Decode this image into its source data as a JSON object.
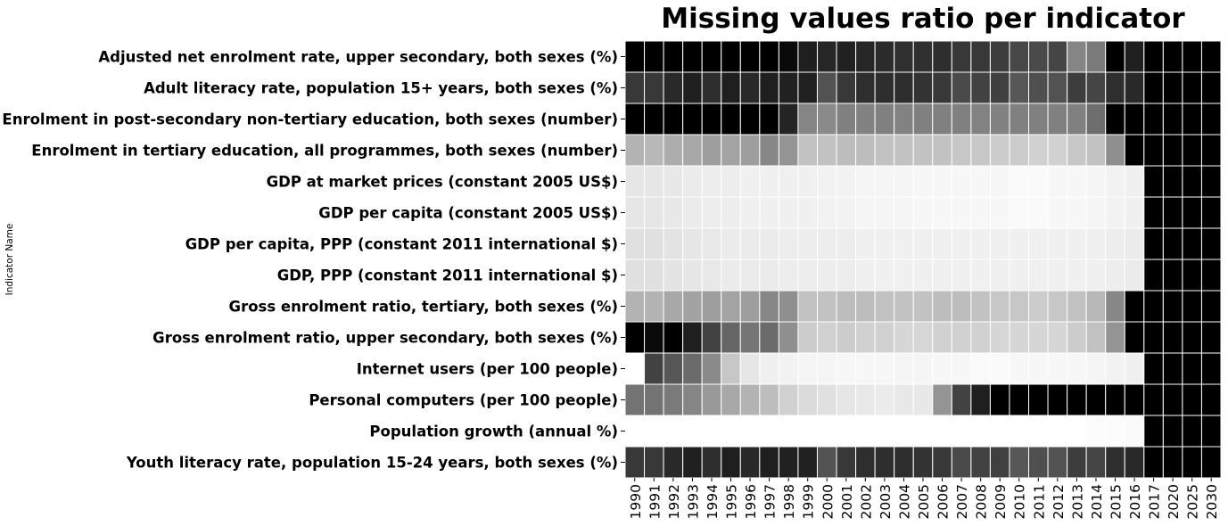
{
  "chart_data": {
    "type": "heatmap",
    "title": "Missing values ratio per indicator",
    "ylabel": "Indicator Name",
    "xlabel": "",
    "colormap": "gray (white = 0, black = 1)",
    "value_range": [
      0,
      1
    ],
    "grid": false,
    "legend": "none",
    "x": [
      "1990",
      "1991",
      "1992",
      "1993",
      "1994",
      "1995",
      "1996",
      "1997",
      "1998",
      "1999",
      "2000",
      "2001",
      "2002",
      "2003",
      "2004",
      "2005",
      "2006",
      "2007",
      "2008",
      "2009",
      "2010",
      "2011",
      "2012",
      "2013",
      "2014",
      "2015",
      "2016",
      "2017",
      "2020",
      "2025",
      "2030"
    ],
    "y": [
      "Adjusted net enrolment rate, upper secondary, both sexes (%)",
      "Adult literacy rate, population 15+ years, both sexes (%)",
      "Enrolment in post-secondary non-tertiary education, both sexes (number)",
      "Enrolment in tertiary education, all programmes, both sexes (number)",
      "GDP at market prices (constant 2005 US$)",
      "GDP per capita (constant 2005 US$)",
      "GDP per capita, PPP (constant 2011 international $)",
      "GDP, PPP (constant 2011 international $)",
      "Gross enrolment ratio, tertiary, both sexes (%)",
      "Gross enrolment ratio, upper secondary, both sexes (%)",
      "Internet users (per 100 people)",
      "Personal computers (per 100 people)",
      "Population growth (annual %)",
      "Youth literacy rate, population 15-24 years, both sexes (%)"
    ],
    "values": [
      [
        1.0,
        1.0,
        1.0,
        1.0,
        1.0,
        1.0,
        1.0,
        1.0,
        0.96,
        0.88,
        0.85,
        0.87,
        0.85,
        0.83,
        0.81,
        0.81,
        0.82,
        0.78,
        0.78,
        0.76,
        0.72,
        0.71,
        0.73,
        0.48,
        0.52,
        1.0,
        0.88,
        1.0,
        1.0,
        1.0,
        1.0
      ],
      [
        0.78,
        0.78,
        0.84,
        0.88,
        0.82,
        0.88,
        0.84,
        0.88,
        0.87,
        0.87,
        0.68,
        0.78,
        0.82,
        0.82,
        0.82,
        0.8,
        0.78,
        0.71,
        0.74,
        0.75,
        0.66,
        0.69,
        0.68,
        0.76,
        0.73,
        0.82,
        0.84,
        1.0,
        1.0,
        1.0,
        1.0
      ],
      [
        1.0,
        1.0,
        1.0,
        1.0,
        1.0,
        1.0,
        1.0,
        1.0,
        0.86,
        0.48,
        0.46,
        0.5,
        0.49,
        0.5,
        0.49,
        0.5,
        0.5,
        0.5,
        0.49,
        0.49,
        0.5,
        0.5,
        0.5,
        0.5,
        0.57,
        1.0,
        1.0,
        1.0,
        1.0,
        1.0,
        1.0
      ],
      [
        0.3,
        0.28,
        0.32,
        0.34,
        0.38,
        0.36,
        0.38,
        0.47,
        0.42,
        0.24,
        0.24,
        0.26,
        0.26,
        0.24,
        0.24,
        0.24,
        0.24,
        0.22,
        0.22,
        0.2,
        0.2,
        0.18,
        0.18,
        0.22,
        0.24,
        0.44,
        1.0,
        1.0,
        1.0,
        1.0,
        1.0
      ],
      [
        0.1,
        0.1,
        0.09,
        0.08,
        0.07,
        0.07,
        0.06,
        0.06,
        0.06,
        0.06,
        0.05,
        0.05,
        0.04,
        0.04,
        0.04,
        0.03,
        0.03,
        0.03,
        0.03,
        0.03,
        0.02,
        0.02,
        0.03,
        0.03,
        0.04,
        0.05,
        0.06,
        1.0,
        1.0,
        1.0,
        1.0
      ],
      [
        0.1,
        0.1,
        0.09,
        0.08,
        0.07,
        0.07,
        0.06,
        0.06,
        0.06,
        0.06,
        0.05,
        0.05,
        0.04,
        0.04,
        0.04,
        0.03,
        0.03,
        0.03,
        0.03,
        0.03,
        0.02,
        0.02,
        0.03,
        0.03,
        0.04,
        0.05,
        0.06,
        1.0,
        1.0,
        1.0,
        1.0
      ],
      [
        0.12,
        0.12,
        0.11,
        0.1,
        0.09,
        0.08,
        0.08,
        0.08,
        0.07,
        0.07,
        0.07,
        0.07,
        0.06,
        0.06,
        0.06,
        0.06,
        0.06,
        0.06,
        0.06,
        0.06,
        0.06,
        0.06,
        0.06,
        0.06,
        0.06,
        0.07,
        0.08,
        1.0,
        1.0,
        1.0,
        1.0
      ],
      [
        0.12,
        0.12,
        0.11,
        0.1,
        0.09,
        0.08,
        0.08,
        0.08,
        0.07,
        0.07,
        0.07,
        0.07,
        0.06,
        0.06,
        0.06,
        0.06,
        0.06,
        0.06,
        0.06,
        0.06,
        0.06,
        0.06,
        0.06,
        0.06,
        0.06,
        0.07,
        0.08,
        1.0,
        1.0,
        1.0,
        1.0
      ],
      [
        0.3,
        0.3,
        0.34,
        0.36,
        0.38,
        0.36,
        0.38,
        0.47,
        0.44,
        0.24,
        0.24,
        0.26,
        0.26,
        0.24,
        0.24,
        0.24,
        0.26,
        0.26,
        0.24,
        0.22,
        0.22,
        0.2,
        0.22,
        0.24,
        0.28,
        0.47,
        1.0,
        1.0,
        1.0,
        1.0,
        1.0
      ],
      [
        1.0,
        0.96,
        1.0,
        0.88,
        0.74,
        0.6,
        0.54,
        0.58,
        0.44,
        0.2,
        0.18,
        0.2,
        0.18,
        0.18,
        0.16,
        0.16,
        0.18,
        0.18,
        0.18,
        0.16,
        0.16,
        0.16,
        0.16,
        0.2,
        0.24,
        0.42,
        1.0,
        1.0,
        1.0,
        1.0,
        1.0
      ],
      [
        0.0,
        0.74,
        0.66,
        0.58,
        0.46,
        0.22,
        0.1,
        0.06,
        0.05,
        0.04,
        0.04,
        0.03,
        0.03,
        0.03,
        0.04,
        0.04,
        0.03,
        0.03,
        0.02,
        0.02,
        0.03,
        0.03,
        0.03,
        0.03,
        0.04,
        0.05,
        0.06,
        1.0,
        1.0,
        1.0,
        1.0
      ],
      [
        0.55,
        0.55,
        0.52,
        0.48,
        0.4,
        0.34,
        0.3,
        0.26,
        0.18,
        0.14,
        0.12,
        0.1,
        0.09,
        0.08,
        0.09,
        0.09,
        0.42,
        0.74,
        0.88,
        1.0,
        1.0,
        1.0,
        1.0,
        1.0,
        1.0,
        1.0,
        1.0,
        1.0,
        1.0,
        1.0,
        1.0
      ],
      [
        0.0,
        0.0,
        0.0,
        0.0,
        0.0,
        0.0,
        0.0,
        0.0,
        0.0,
        0.0,
        0.0,
        0.0,
        0.0,
        0.0,
        0.0,
        0.0,
        0.0,
        0.0,
        0.0,
        0.0,
        0.0,
        0.0,
        0.0,
        0.0,
        0.01,
        0.01,
        0.02,
        1.0,
        1.0,
        1.0,
        1.0
      ],
      [
        0.78,
        0.78,
        0.84,
        0.88,
        0.82,
        0.88,
        0.84,
        0.88,
        0.87,
        0.87,
        0.68,
        0.78,
        0.82,
        0.82,
        0.82,
        0.8,
        0.78,
        0.71,
        0.74,
        0.75,
        0.66,
        0.69,
        0.68,
        0.76,
        0.73,
        0.82,
        0.84,
        1.0,
        1.0,
        1.0,
        1.0
      ]
    ]
  }
}
